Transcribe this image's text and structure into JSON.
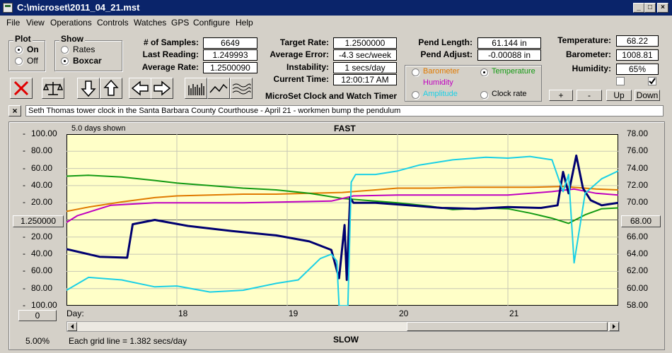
{
  "window": {
    "title": "C:\\microset\\2011_04_21.mst",
    "min": "_",
    "max": "□",
    "close": "×"
  },
  "menu": [
    "File",
    "View",
    "Operations",
    "Controls",
    "Watches",
    "GPS",
    "Configure",
    "Help"
  ],
  "plot_group": {
    "label": "Plot",
    "options": [
      "On",
      "Off"
    ],
    "selected": "On"
  },
  "show_group": {
    "label": "Show",
    "options": [
      "Rates",
      "Boxcar"
    ],
    "selected": "Boxcar"
  },
  "stats": [
    {
      "label": "# of Samples:",
      "value": "6649"
    },
    {
      "label": "Last Reading:",
      "value": "1.249993"
    },
    {
      "label": "Average Rate:",
      "value": "1.2500090"
    }
  ],
  "rates": [
    {
      "label": "Target Rate:",
      "value": "1.2500000"
    },
    {
      "label": "Average Error:",
      "value": "-4.3 sec/week"
    },
    {
      "label": "Instability:",
      "value": "1 secs/day"
    },
    {
      "label": "Current Time:",
      "value": "12:00:17 AM"
    }
  ],
  "pend": [
    {
      "label": "Pend Length:",
      "value": "61.144 in"
    },
    {
      "label": "Pend Adjust:",
      "value": "-0.00088 in"
    }
  ],
  "env": [
    {
      "label": "Temperature:",
      "value": "68.22"
    },
    {
      "label": "Barometer:",
      "value": "1008.81"
    },
    {
      "label": "Humidity:",
      "value": "65%"
    }
  ],
  "sensor_options": [
    {
      "label": "Barometer",
      "color": "#e07a00",
      "selected": false
    },
    {
      "label": "Temperature",
      "color": "#139a13",
      "selected": true
    },
    {
      "label": "Humidity",
      "color": "#c000c0",
      "selected": false
    },
    {
      "label": "Clock rate",
      "color": "#000000",
      "selected": false
    },
    {
      "label": "Amplitude",
      "color": "#1ad0e6",
      "selected": false
    }
  ],
  "app_caption": "MicroSet Clock and Watch Timer",
  "adjust_buttons": [
    "+",
    "-",
    "Up",
    "Down"
  ],
  "close_x": "×",
  "annotation": "Seth Thomas tower clock in the Santa Barbara County Courthouse - April 21 - workmen bump the pendulum",
  "chart": {
    "days_shown": "5.0 days shown",
    "top_label": "FAST",
    "bottom_label": "SLOW",
    "center_left": "1.250000",
    "center_right": "68.00",
    "left_ticks": [
      "100.00",
      "80.00",
      "60.00",
      "40.00",
      "20.00",
      "20.00",
      "40.00",
      "60.00",
      "80.00",
      "100.00"
    ],
    "right_ticks": [
      "78.00",
      "76.00",
      "74.00",
      "72.00",
      "70.00",
      "66.00",
      "64.00",
      "62.00",
      "60.00",
      "58.00"
    ],
    "day_label": "Day:",
    "day_ticks": [
      "18",
      "19",
      "20",
      "21"
    ],
    "zero_button": "0",
    "percent": "5.00%",
    "grid_note": "Each grid line = 1.382 secs/day"
  },
  "chart_data": {
    "type": "line",
    "x_range": [
      17.0,
      22.0
    ],
    "left_axis": {
      "ticks": [
        100,
        80,
        60,
        40,
        20,
        0,
        -20,
        -40,
        -60,
        -80,
        -100
      ],
      "range": [
        -100,
        100
      ]
    },
    "right_axis": {
      "range": [
        58,
        78
      ]
    },
    "series": [
      {
        "name": "Barometer",
        "color": "#e07a00",
        "x": [
          17.0,
          17.2,
          17.5,
          17.8,
          18.0,
          18.3,
          18.6,
          18.9,
          19.2,
          19.5,
          19.6,
          19.8,
          20.0,
          20.3,
          20.6,
          20.9,
          21.2,
          21.5,
          21.8,
          22.0
        ],
        "y": [
          10,
          15,
          21,
          26,
          28,
          29,
          30,
          30,
          31,
          32,
          33,
          35,
          37,
          37,
          38,
          38,
          38,
          39,
          36,
          35
        ]
      },
      {
        "name": "Temperature",
        "color": "#139a13",
        "x": [
          17.0,
          17.2,
          17.5,
          17.8,
          18.0,
          18.3,
          18.6,
          18.9,
          19.2,
          19.5,
          19.7,
          20.0,
          20.3,
          20.5,
          20.8,
          21.0,
          21.2,
          21.4,
          21.55,
          21.7,
          21.85,
          22.0
        ],
        "y": [
          51,
          52,
          50,
          46,
          43,
          40,
          37,
          35,
          31,
          25,
          23,
          20,
          16,
          12,
          14,
          13,
          8,
          2,
          -4,
          6,
          13,
          14
        ]
      },
      {
        "name": "Humidity",
        "color": "#c000c0",
        "x": [
          17.0,
          17.1,
          17.4,
          17.8,
          18.2,
          18.6,
          19.0,
          19.4,
          19.6,
          20.0,
          20.5,
          21.0,
          21.4,
          21.6,
          21.8,
          22.0
        ],
        "y": [
          -3,
          5,
          17,
          20,
          20,
          20,
          21,
          22,
          28,
          29,
          29,
          29,
          33,
          36,
          31,
          29
        ]
      },
      {
        "name": "Clock rate",
        "color": "#000070",
        "x": [
          17.0,
          17.3,
          17.55,
          17.6,
          17.8,
          18.1,
          18.5,
          18.9,
          19.2,
          19.4,
          19.47,
          19.52,
          19.54,
          19.57,
          19.6,
          19.8,
          20.1,
          20.4,
          20.7,
          21.0,
          21.3,
          21.45,
          21.5,
          21.55,
          21.62,
          21.68,
          21.75,
          21.85,
          22.0
        ],
        "y": [
          -34,
          -43,
          -44,
          -5,
          0,
          -7,
          -13,
          -18,
          -25,
          -35,
          -68,
          -6,
          -70,
          26,
          20,
          20,
          17,
          14,
          13,
          15,
          14,
          17,
          56,
          31,
          75,
          37,
          23,
          17,
          20
        ]
      },
      {
        "name": "Amplitude",
        "color": "#1ad0e6",
        "x": [
          17.0,
          17.2,
          17.5,
          17.8,
          18.0,
          18.3,
          18.6,
          18.9,
          19.1,
          19.3,
          19.4,
          19.45,
          19.47,
          19.52,
          19.55,
          19.58,
          19.62,
          19.8,
          20.0,
          20.2,
          20.5,
          20.8,
          21.0,
          21.2,
          21.4,
          21.5,
          21.55,
          21.6,
          21.7,
          21.85,
          22.0
        ],
        "y": [
          -82,
          -67,
          -70,
          -78,
          -77,
          -84,
          -82,
          -74,
          -70,
          -45,
          -40,
          -48,
          -110,
          -110,
          -100,
          44,
          53,
          53,
          57,
          64,
          70,
          73,
          72,
          74,
          70,
          33,
          53,
          -50,
          31,
          48,
          57
        ]
      }
    ]
  }
}
